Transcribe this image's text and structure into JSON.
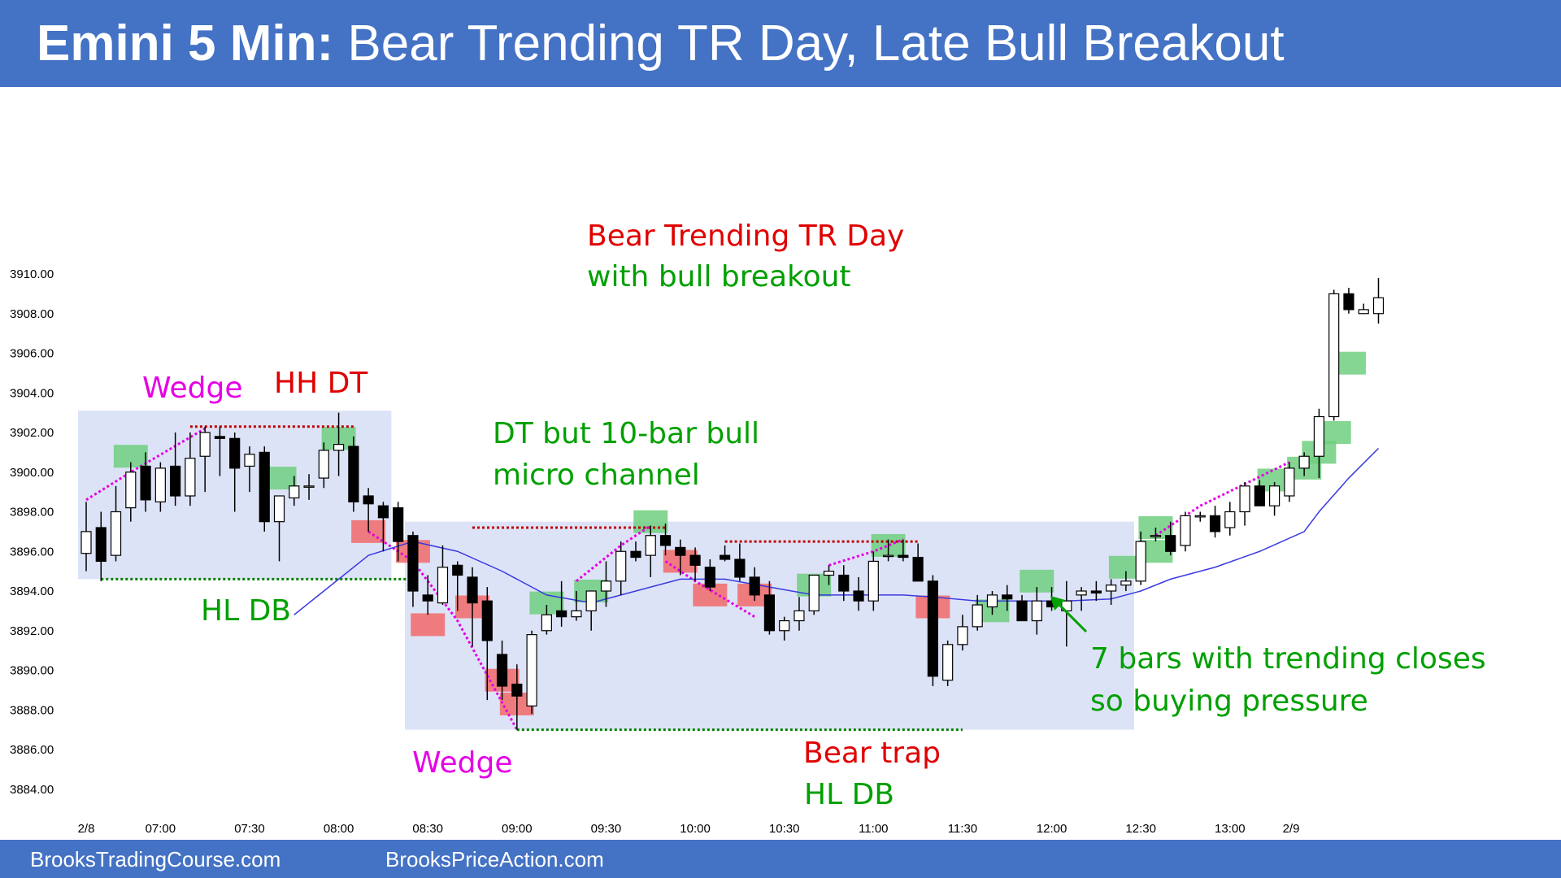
{
  "header": {
    "title_bold": "Emini 5 Min:",
    "title_rest": "Bear Trending TR Day, Late Bull Breakout"
  },
  "footer": {
    "left": "BrooksTradingCourse.com",
    "right": "BrooksPriceAction.com"
  },
  "colors": {
    "banner": "#4472c4",
    "bull_label": "#00a000",
    "bear_label": "#e00000",
    "wedge_label": "#e600e6",
    "ema": "#3a3ae0",
    "range_box": "#dde3f7",
    "bull_highlight": "#6fcf7f",
    "bear_highlight": "#f07070"
  },
  "chart_data": {
    "type": "candlestick",
    "ylim": [
      3884,
      3910
    ],
    "y_ticks": [
      "3910.00",
      "3908.00",
      "3906.00",
      "3904.00",
      "3902.00",
      "3900.00",
      "3898.00",
      "3896.00",
      "3894.00",
      "3892.00",
      "3890.00",
      "3888.00",
      "3886.00",
      "3884.00"
    ],
    "x_ticks": [
      "2/8",
      "07:00",
      "07:30",
      "08:00",
      "08:30",
      "09:00",
      "09:30",
      "10:00",
      "10:30",
      "11:00",
      "11:30",
      "12:00",
      "12:30",
      "13:00",
      "2/9"
    ],
    "first_bar_time": "06:35",
    "bar_minutes": 5,
    "bars": [
      {
        "o": 3895.9,
        "h": 3898.5,
        "l": 3895.0,
        "c": 3897.0
      },
      {
        "o": 3897.2,
        "h": 3898.0,
        "l": 3894.5,
        "c": 3895.5
      },
      {
        "o": 3895.8,
        "h": 3899.3,
        "l": 3895.5,
        "c": 3898.0
      },
      {
        "o": 3898.2,
        "h": 3900.5,
        "l": 3897.5,
        "c": 3900.0
      },
      {
        "o": 3900.3,
        "h": 3901.0,
        "l": 3898.0,
        "c": 3898.6
      },
      {
        "o": 3898.5,
        "h": 3900.5,
        "l": 3898.0,
        "c": 3900.2
      },
      {
        "o": 3900.3,
        "h": 3902.0,
        "l": 3898.3,
        "c": 3898.8
      },
      {
        "o": 3898.8,
        "h": 3902.0,
        "l": 3898.3,
        "c": 3900.7
      },
      {
        "o": 3900.8,
        "h": 3902.3,
        "l": 3899.0,
        "c": 3902.0
      },
      {
        "o": 3901.8,
        "h": 3902.3,
        "l": 3899.8,
        "c": 3901.7
      },
      {
        "o": 3901.7,
        "h": 3902.0,
        "l": 3898.0,
        "c": 3900.2
      },
      {
        "o": 3900.3,
        "h": 3901.3,
        "l": 3899.0,
        "c": 3900.9
      },
      {
        "o": 3901.0,
        "h": 3901.3,
        "l": 3897.0,
        "c": 3897.5
      },
      {
        "o": 3897.5,
        "h": 3898.8,
        "l": 3895.5,
        "c": 3898.8
      },
      {
        "o": 3898.7,
        "h": 3899.8,
        "l": 3898.3,
        "c": 3899.3
      },
      {
        "o": 3899.3,
        "h": 3899.9,
        "l": 3898.6,
        "c": 3899.3
      },
      {
        "o": 3899.7,
        "h": 3901.5,
        "l": 3899.2,
        "c": 3901.1
      },
      {
        "o": 3901.1,
        "h": 3903.0,
        "l": 3899.8,
        "c": 3901.4
      },
      {
        "o": 3901.3,
        "h": 3901.8,
        "l": 3898.0,
        "c": 3898.5
      },
      {
        "o": 3898.8,
        "h": 3899.2,
        "l": 3897.0,
        "c": 3898.4
      },
      {
        "o": 3898.3,
        "h": 3898.5,
        "l": 3896.0,
        "c": 3897.7
      },
      {
        "o": 3898.2,
        "h": 3898.5,
        "l": 3895.5,
        "c": 3896.5
      },
      {
        "o": 3896.8,
        "h": 3897.0,
        "l": 3893.2,
        "c": 3894.0
      },
      {
        "o": 3893.8,
        "h": 3894.8,
        "l": 3892.8,
        "c": 3893.5
      },
      {
        "o": 3893.4,
        "h": 3896.3,
        "l": 3893.3,
        "c": 3895.2
      },
      {
        "o": 3895.3,
        "h": 3895.5,
        "l": 3893.0,
        "c": 3894.8
      },
      {
        "o": 3894.7,
        "h": 3895.2,
        "l": 3891.2,
        "c": 3893.4
      },
      {
        "o": 3893.5,
        "h": 3894.2,
        "l": 3888.5,
        "c": 3891.5
      },
      {
        "o": 3890.8,
        "h": 3891.5,
        "l": 3888.5,
        "c": 3889.2
      },
      {
        "o": 3889.3,
        "h": 3890.3,
        "l": 3887.0,
        "c": 3888.7
      },
      {
        "o": 3888.2,
        "h": 3892.0,
        "l": 3887.8,
        "c": 3891.8
      },
      {
        "o": 3892.0,
        "h": 3893.3,
        "l": 3891.8,
        "c": 3892.8
      },
      {
        "o": 3893.0,
        "h": 3894.5,
        "l": 3892.2,
        "c": 3892.7
      },
      {
        "o": 3892.7,
        "h": 3894.0,
        "l": 3892.5,
        "c": 3893.0
      },
      {
        "o": 3893.0,
        "h": 3894.0,
        "l": 3892.0,
        "c": 3894.0
      },
      {
        "o": 3894.0,
        "h": 3895.5,
        "l": 3893.2,
        "c": 3894.5
      },
      {
        "o": 3894.5,
        "h": 3896.5,
        "l": 3893.8,
        "c": 3896.0
      },
      {
        "o": 3896.0,
        "h": 3896.5,
        "l": 3895.5,
        "c": 3895.7
      },
      {
        "o": 3895.8,
        "h": 3897.3,
        "l": 3894.7,
        "c": 3896.8
      },
      {
        "o": 3896.8,
        "h": 3897.4,
        "l": 3895.8,
        "c": 3896.3
      },
      {
        "o": 3896.2,
        "h": 3896.6,
        "l": 3894.8,
        "c": 3895.8
      },
      {
        "o": 3895.8,
        "h": 3896.2,
        "l": 3894.5,
        "c": 3895.3
      },
      {
        "o": 3895.2,
        "h": 3895.6,
        "l": 3894.0,
        "c": 3894.2
      },
      {
        "o": 3895.8,
        "h": 3896.3,
        "l": 3895.5,
        "c": 3895.6
      },
      {
        "o": 3895.6,
        "h": 3896.4,
        "l": 3894.5,
        "c": 3894.7
      },
      {
        "o": 3894.7,
        "h": 3895.2,
        "l": 3893.5,
        "c": 3893.8
      },
      {
        "o": 3893.8,
        "h": 3894.5,
        "l": 3891.8,
        "c": 3892.0
      },
      {
        "o": 3892.0,
        "h": 3892.7,
        "l": 3891.5,
        "c": 3892.5
      },
      {
        "o": 3892.5,
        "h": 3893.7,
        "l": 3892.0,
        "c": 3893.0
      },
      {
        "o": 3893.0,
        "h": 3894.8,
        "l": 3892.8,
        "c": 3894.8
      },
      {
        "o": 3894.8,
        "h": 3895.3,
        "l": 3894.3,
        "c": 3895.0
      },
      {
        "o": 3894.8,
        "h": 3895.3,
        "l": 3893.5,
        "c": 3894.0
      },
      {
        "o": 3894.0,
        "h": 3894.7,
        "l": 3893.0,
        "c": 3893.5
      },
      {
        "o": 3893.5,
        "h": 3896.0,
        "l": 3893.0,
        "c": 3895.5
      },
      {
        "o": 3895.8,
        "h": 3896.6,
        "l": 3895.5,
        "c": 3895.8
      },
      {
        "o": 3895.8,
        "h": 3896.6,
        "l": 3895.5,
        "c": 3895.7
      },
      {
        "o": 3895.7,
        "h": 3896.4,
        "l": 3894.5,
        "c": 3894.5
      },
      {
        "o": 3894.5,
        "h": 3894.8,
        "l": 3889.2,
        "c": 3889.7
      },
      {
        "o": 3889.5,
        "h": 3891.5,
        "l": 3889.2,
        "c": 3891.3
      },
      {
        "o": 3891.3,
        "h": 3892.8,
        "l": 3891.0,
        "c": 3892.2
      },
      {
        "o": 3892.2,
        "h": 3893.8,
        "l": 3892.0,
        "c": 3893.3
      },
      {
        "o": 3893.2,
        "h": 3894.0,
        "l": 3892.8,
        "c": 3893.8
      },
      {
        "o": 3893.8,
        "h": 3894.3,
        "l": 3893.0,
        "c": 3893.6
      },
      {
        "o": 3893.5,
        "h": 3893.8,
        "l": 3892.5,
        "c": 3892.5
      },
      {
        "o": 3892.5,
        "h": 3894.2,
        "l": 3891.8,
        "c": 3893.5
      },
      {
        "o": 3893.5,
        "h": 3894.2,
        "l": 3893.0,
        "c": 3893.2
      },
      {
        "o": 3893.0,
        "h": 3894.5,
        "l": 3891.2,
        "c": 3893.5
      },
      {
        "o": 3893.8,
        "h": 3894.2,
        "l": 3893.0,
        "c": 3894.0
      },
      {
        "o": 3894.0,
        "h": 3894.5,
        "l": 3893.5,
        "c": 3893.9
      },
      {
        "o": 3894.0,
        "h": 3894.6,
        "l": 3893.3,
        "c": 3894.3
      },
      {
        "o": 3894.3,
        "h": 3895.0,
        "l": 3894.0,
        "c": 3894.5
      },
      {
        "o": 3894.5,
        "h": 3897.0,
        "l": 3894.3,
        "c": 3896.5
      },
      {
        "o": 3896.8,
        "h": 3897.2,
        "l": 3896.5,
        "c": 3896.8
      },
      {
        "o": 3896.8,
        "h": 3897.5,
        "l": 3895.8,
        "c": 3896.0
      },
      {
        "o": 3896.3,
        "h": 3898.0,
        "l": 3896.0,
        "c": 3897.8
      },
      {
        "o": 3897.8,
        "h": 3898.0,
        "l": 3897.5,
        "c": 3897.8
      },
      {
        "o": 3897.8,
        "h": 3898.3,
        "l": 3896.7,
        "c": 3897.0
      },
      {
        "o": 3897.2,
        "h": 3898.5,
        "l": 3896.8,
        "c": 3898.0
      },
      {
        "o": 3898.0,
        "h": 3899.5,
        "l": 3897.3,
        "c": 3899.3
      },
      {
        "o": 3899.3,
        "h": 3899.6,
        "l": 3898.3,
        "c": 3898.3
      },
      {
        "o": 3898.3,
        "h": 3899.5,
        "l": 3897.8,
        "c": 3899.3
      },
      {
        "o": 3898.8,
        "h": 3900.5,
        "l": 3898.5,
        "c": 3900.2
      },
      {
        "o": 3900.2,
        "h": 3901.0,
        "l": 3899.8,
        "c": 3900.8
      },
      {
        "o": 3900.8,
        "h": 3903.2,
        "l": 3899.7,
        "c": 3902.8
      },
      {
        "o": 3902.8,
        "h": 3909.2,
        "l": 3902.6,
        "c": 3909.0
      },
      {
        "o": 3909.0,
        "h": 3909.3,
        "l": 3908.0,
        "c": 3908.2
      },
      {
        "o": 3908.0,
        "h": 3908.5,
        "l": 3908.0,
        "c": 3908.2
      },
      {
        "o": 3908.0,
        "h": 3909.8,
        "l": 3907.5,
        "c": 3908.8
      }
    ],
    "ema_20": [
      [
        14,
        3892.8
      ],
      [
        16,
        3894.0
      ],
      [
        19,
        3895.8
      ],
      [
        22,
        3896.5
      ],
      [
        25,
        3896.0
      ],
      [
        28,
        3895.0
      ],
      [
        31,
        3893.8
      ],
      [
        34,
        3893.4
      ],
      [
        37,
        3894.0
      ],
      [
        40,
        3894.6
      ],
      [
        43,
        3894.6
      ],
      [
        46,
        3894.2
      ],
      [
        49,
        3893.8
      ],
      [
        52,
        3893.8
      ],
      [
        55,
        3893.8
      ],
      [
        57,
        3893.7
      ],
      [
        60,
        3893.5
      ],
      [
        63,
        3893.5
      ],
      [
        66,
        3893.5
      ],
      [
        69,
        3893.6
      ],
      [
        71,
        3894.0
      ],
      [
        73,
        3894.6
      ],
      [
        76,
        3895.2
      ],
      [
        79,
        3896.0
      ],
      [
        82,
        3897.0
      ],
      [
        83,
        3898.0
      ],
      [
        85,
        3899.7
      ],
      [
        87,
        3901.2
      ]
    ],
    "annotations": [
      {
        "text": "Bear Trending TR Day",
        "color": "red"
      },
      {
        "text": "with bull breakout",
        "color": "green"
      },
      {
        "text": "Wedge",
        "color": "magenta"
      },
      {
        "text": "HH DT",
        "color": "red"
      },
      {
        "text": "HL DB",
        "color": "green"
      },
      {
        "text": "DT but 10-bar bull",
        "color": "green"
      },
      {
        "text": "micro channel",
        "color": "green"
      },
      {
        "text": "Wedge",
        "color": "magenta"
      },
      {
        "text": "Bear trap",
        "color": "red"
      },
      {
        "text": "HL DB",
        "color": "green"
      },
      {
        "text": "7 bars with trending closes",
        "color": "green"
      },
      {
        "text": "so buying pressure",
        "color": "green"
      }
    ],
    "range_boxes": [
      {
        "from_bar": 0,
        "to_bar": 20,
        "top": 3903.1,
        "bottom": 3894.6
      },
      {
        "from_bar": 22,
        "to_bar": 70,
        "top": 3897.5,
        "bottom": 3887.0
      }
    ],
    "highlights": [
      {
        "bar": 3,
        "type": "bull",
        "center": 3900.8
      },
      {
        "bar": 13,
        "type": "bull",
        "center": 3899.7
      },
      {
        "bar": 17,
        "type": "bull",
        "center": 3901.7
      },
      {
        "bar": 19,
        "type": "bear",
        "center": 3897.0
      },
      {
        "bar": 22,
        "type": "bear",
        "center": 3896.0
      },
      {
        "bar": 23,
        "type": "bear",
        "center": 3892.3
      },
      {
        "bar": 26,
        "type": "bear",
        "center": 3893.2
      },
      {
        "bar": 28,
        "type": "bear",
        "center": 3889.5
      },
      {
        "bar": 29,
        "type": "bear",
        "center": 3888.3
      },
      {
        "bar": 31,
        "type": "bull",
        "center": 3893.4
      },
      {
        "bar": 34,
        "type": "bull",
        "center": 3894.0
      },
      {
        "bar": 38,
        "type": "bull",
        "center": 3897.5
      },
      {
        "bar": 40,
        "type": "bear",
        "center": 3895.5
      },
      {
        "bar": 42,
        "type": "bear",
        "center": 3893.8
      },
      {
        "bar": 45,
        "type": "bear",
        "center": 3893.8
      },
      {
        "bar": 49,
        "type": "bull",
        "center": 3894.3
      },
      {
        "bar": 54,
        "type": "bull",
        "center": 3896.3
      },
      {
        "bar": 57,
        "type": "bear",
        "center": 3893.2
      },
      {
        "bar": 61,
        "type": "bull",
        "center": 3893.0
      },
      {
        "bar": 64,
        "type": "bull",
        "center": 3894.5
      },
      {
        "bar": 70,
        "type": "bull",
        "center": 3895.2
      },
      {
        "bar": 72,
        "type": "bull",
        "center": 3896.0
      },
      {
        "bar": 72,
        "type": "bull",
        "center": 3897.2
      },
      {
        "bar": 80,
        "type": "bull",
        "center": 3899.6
      },
      {
        "bar": 82,
        "type": "bull",
        "center": 3900.2
      },
      {
        "bar": 83,
        "type": "bull",
        "center": 3901.0
      },
      {
        "bar": 84,
        "type": "bull",
        "center": 3902.0
      },
      {
        "bar": 85,
        "type": "bull",
        "center": 3905.5
      }
    ],
    "dotted_lines": [
      {
        "color": "red",
        "from_bar": 7,
        "to_bar": 18,
        "y": 3902.3
      },
      {
        "color": "green",
        "from_bar": 1,
        "to_bar": 22,
        "y": 3894.6
      },
      {
        "color": "red",
        "from_bar": 26,
        "to_bar": 39,
        "y": 3897.2
      },
      {
        "color": "red",
        "from_bar": 43,
        "to_bar": 56,
        "y": 3896.5
      },
      {
        "color": "green",
        "from_bar": 29,
        "to_bar": 59,
        "y": 3887.0
      }
    ],
    "wedge_lines": [
      [
        [
          0,
          3898.6
        ],
        [
          3,
          3900.0
        ],
        [
          8,
          3902.2
        ]
      ],
      [
        [
          19,
          3897.0
        ],
        [
          22,
          3895.5
        ],
        [
          25,
          3892.5
        ],
        [
          29,
          3887.0
        ]
      ],
      [
        [
          33,
          3894.5
        ],
        [
          36,
          3896.3
        ],
        [
          38,
          3897.3
        ]
      ],
      [
        [
          39,
          3895.5
        ],
        [
          41,
          3894.5
        ],
        [
          45,
          3892.7
        ]
      ],
      [
        [
          50,
          3895.3
        ],
        [
          53,
          3896.0
        ],
        [
          55,
          3896.6
        ]
      ],
      [
        [
          72,
          3896.8
        ],
        [
          75,
          3898.3
        ],
        [
          81,
          3900.5
        ]
      ]
    ]
  }
}
